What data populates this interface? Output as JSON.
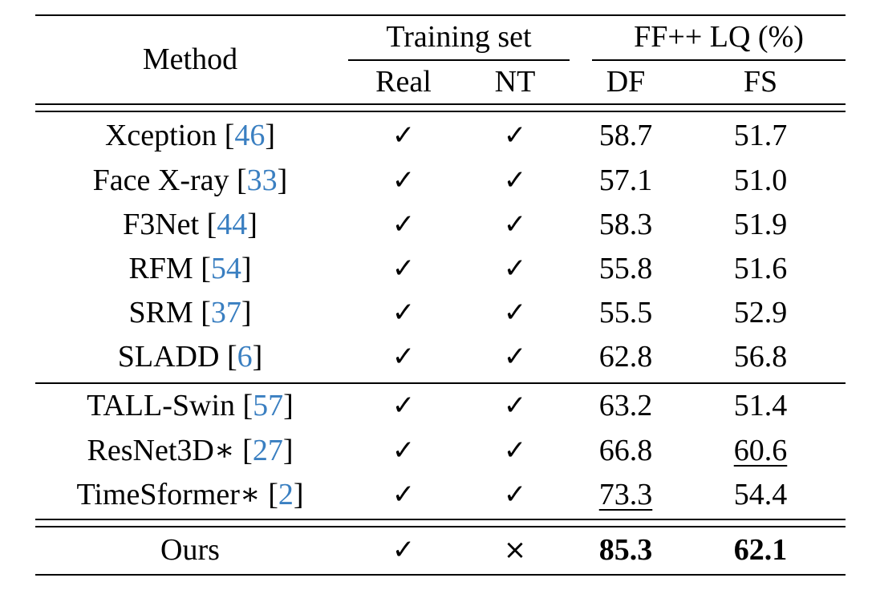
{
  "header": {
    "method": "Method",
    "training_set": "Training set",
    "ffpp": "FF++ LQ (%)",
    "real": "Real",
    "nt": "NT",
    "df": "DF",
    "fs": "FS"
  },
  "rows": [
    {
      "name": "Xception",
      "ref": "46",
      "real": "✓",
      "nt": "✓",
      "df": "58.7",
      "fs": "51.7"
    },
    {
      "name": "Face X-ray",
      "ref": "33",
      "real": "✓",
      "nt": "✓",
      "df": "57.1",
      "fs": "51.0"
    },
    {
      "name": "F3Net",
      "ref": "44",
      "real": "✓",
      "nt": "✓",
      "df": "58.3",
      "fs": "51.9"
    },
    {
      "name": "RFM",
      "ref": "54",
      "real": "✓",
      "nt": "✓",
      "df": "55.8",
      "fs": "51.6"
    },
    {
      "name": "SRM",
      "ref": "37",
      "real": "✓",
      "nt": "✓",
      "df": "55.5",
      "fs": "52.9"
    },
    {
      "name": "SLADD",
      "ref": "6",
      "real": "✓",
      "nt": "✓",
      "df": "62.8",
      "fs": "56.8"
    },
    {
      "name": "TALL-Swin",
      "ref": "57",
      "real": "✓",
      "nt": "✓",
      "df": "63.2",
      "fs": "51.4"
    },
    {
      "name": "ResNet3D*",
      "ref": "27",
      "real": "✓",
      "nt": "✓",
      "df": "66.8",
      "fs": "60.6"
    },
    {
      "name": "TimeSformer*",
      "ref": "2",
      "real": "✓",
      "nt": "✓",
      "df": "73.3",
      "fs": "54.4"
    },
    {
      "name": "Ours",
      "ref": "",
      "real": "✓",
      "nt": "×",
      "df": "85.3",
      "fs": "62.1"
    }
  ]
}
